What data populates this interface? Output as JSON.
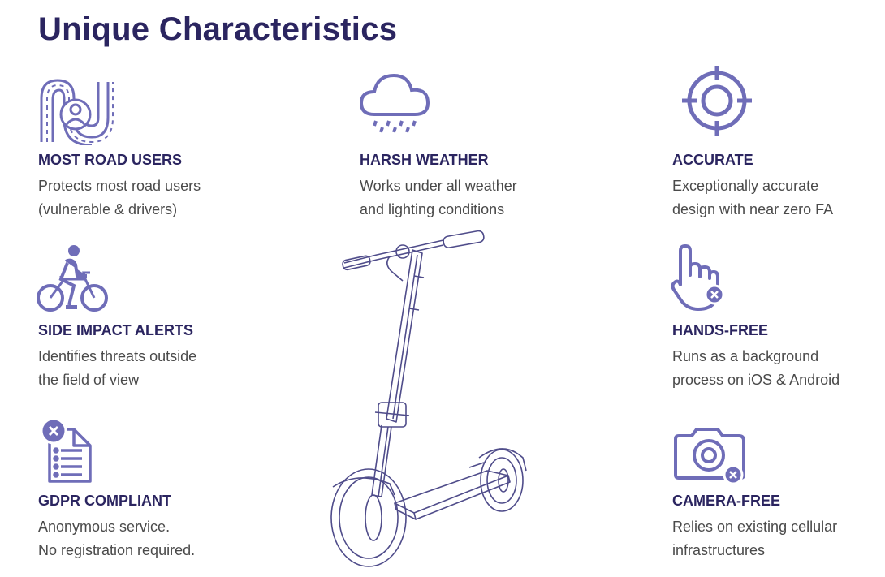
{
  "page": {
    "title": "Unique Characteristics",
    "accent_color": "#2b2560",
    "icon_color": "#6f6db8"
  },
  "features": [
    {
      "id": "most-road-users",
      "icon": "road-user-icon",
      "title": "MOST ROAD USERS",
      "desc": [
        "Protects most road users",
        "(vulnerable & drivers)"
      ]
    },
    {
      "id": "harsh-weather",
      "icon": "rain-cloud-icon",
      "title": "HARSH WEATHER",
      "desc": [
        "Works under all weather",
        "and lighting conditions"
      ]
    },
    {
      "id": "accurate",
      "icon": "crosshair-icon",
      "title": "ACCURATE",
      "desc": [
        "Exceptionally accurate",
        "design with near zero FA"
      ]
    },
    {
      "id": "side-impact",
      "icon": "cyclist-icon",
      "title": "SIDE IMPACT ALERTS",
      "desc": [
        "Identifies threats outside",
        "the field of view"
      ]
    },
    {
      "id": "hands-free",
      "icon": "hand-pointer-icon",
      "title": "HANDS-FREE",
      "desc": [
        "Runs as a background",
        "process on iOS & Android"
      ]
    },
    {
      "id": "gdpr",
      "icon": "document-icon",
      "title": "GDPR COMPLIANT",
      "desc": [
        "Anonymous service.",
        "No registration required."
      ]
    },
    {
      "id": "camera-free",
      "icon": "camera-icon",
      "title": "CAMERA-FREE",
      "desc": [
        "Relies on existing cellular",
        "infrastructures"
      ]
    }
  ]
}
